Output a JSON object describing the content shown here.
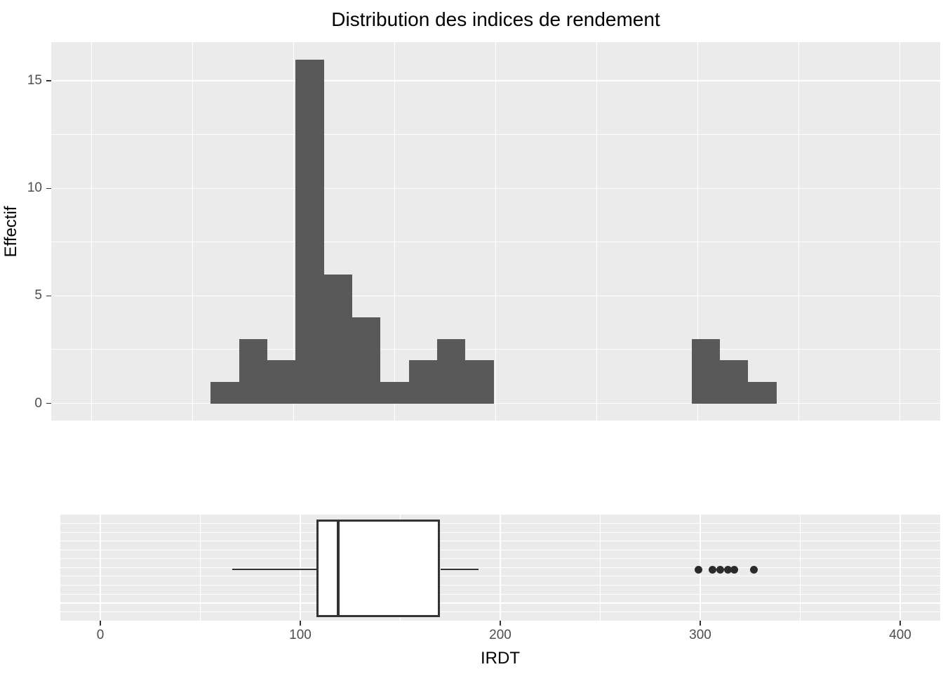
{
  "title": "Distribution des indices de rendement",
  "axis": {
    "x_label": "IRDT",
    "y_label": "Effectif",
    "x_tick_labels": [
      "0",
      "100",
      "200",
      "300",
      "400"
    ],
    "y_tick_labels": [
      "0",
      "5",
      "10",
      "15"
    ]
  },
  "colors": {
    "background": "#FFFFFF",
    "panel_bg": "#EBEBEB",
    "gridline": "#FFFFFF",
    "bar_fill": "#595959",
    "box_stroke": "#333333",
    "box_fill": "#FFFFFF",
    "outlier_dot": "#2B2B2B",
    "axis_text": "#4D4D4D",
    "tick_mark": "#333333",
    "title_text": "#000000"
  },
  "chart_data": [
    {
      "type": "bar",
      "subtype": "histogram",
      "title": "Distribution des indices de rendement",
      "xlabel": "IRDT",
      "ylabel": "Effectif",
      "x_domain": [
        -20,
        420
      ],
      "y_domain": [
        -0.8,
        16.8
      ],
      "x_ticks": [
        0,
        100,
        200,
        300,
        400
      ],
      "x_minor_ticks": [
        50,
        150,
        250,
        350
      ],
      "y_ticks": [
        0,
        5,
        10,
        15
      ],
      "y_minor_ticks": [
        2.5,
        7.5,
        12.5
      ],
      "bin_width": 14,
      "total_count": 46,
      "bins": [
        {
          "x0": 59,
          "x1": 73,
          "count": 1
        },
        {
          "x0": 73,
          "x1": 87,
          "count": 3
        },
        {
          "x0": 87,
          "x1": 101,
          "count": 2
        },
        {
          "x0": 101,
          "x1": 115,
          "count": 16
        },
        {
          "x0": 115,
          "x1": 129,
          "count": 6
        },
        {
          "x0": 129,
          "x1": 143,
          "count": 4
        },
        {
          "x0": 143,
          "x1": 157,
          "count": 1
        },
        {
          "x0": 157,
          "x1": 171,
          "count": 2
        },
        {
          "x0": 171,
          "x1": 185,
          "count": 3
        },
        {
          "x0": 185,
          "x1": 199,
          "count": 2
        },
        {
          "x0": 297,
          "x1": 311,
          "count": 3
        },
        {
          "x0": 311,
          "x1": 325,
          "count": 2
        },
        {
          "x0": 325,
          "x1": 339,
          "count": 1
        }
      ],
      "grid": true,
      "legend": false
    },
    {
      "type": "boxplot",
      "orientation": "horizontal",
      "xlabel": "IRDT",
      "x_domain": [
        -20,
        420
      ],
      "x_ticks": [
        0,
        100,
        200,
        300,
        400
      ],
      "x_minor_ticks": [
        50,
        150,
        250,
        350
      ],
      "stats": {
        "whisker_min": 66,
        "q1": 108,
        "median": 119,
        "q3": 170,
        "whisker_max": 189
      },
      "outliers": [
        299,
        306,
        310,
        314,
        317,
        327
      ]
    }
  ]
}
